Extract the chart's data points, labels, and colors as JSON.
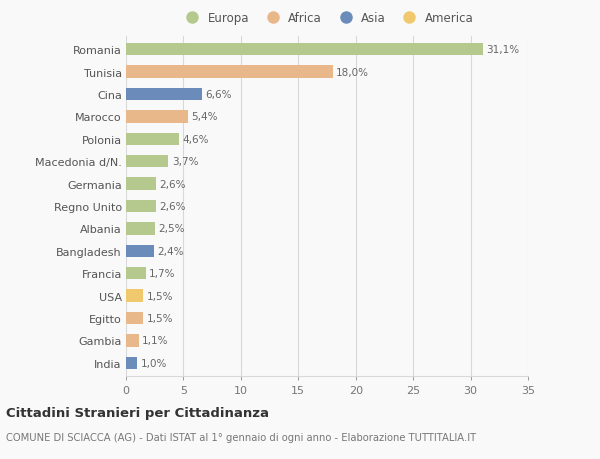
{
  "countries": [
    "Romania",
    "Tunisia",
    "Cina",
    "Marocco",
    "Polonia",
    "Macedonia d/N.",
    "Germania",
    "Regno Unito",
    "Albania",
    "Bangladesh",
    "Francia",
    "USA",
    "Egitto",
    "Gambia",
    "India"
  ],
  "values": [
    31.1,
    18.0,
    6.6,
    5.4,
    4.6,
    3.7,
    2.6,
    2.6,
    2.5,
    2.4,
    1.7,
    1.5,
    1.5,
    1.1,
    1.0
  ],
  "labels": [
    "31,1%",
    "18,0%",
    "6,6%",
    "5,4%",
    "4,6%",
    "3,7%",
    "2,6%",
    "2,6%",
    "2,5%",
    "2,4%",
    "1,7%",
    "1,5%",
    "1,5%",
    "1,1%",
    "1,0%"
  ],
  "continents": [
    "Europa",
    "Africa",
    "Asia",
    "Africa",
    "Europa",
    "Europa",
    "Europa",
    "Europa",
    "Europa",
    "Asia",
    "Europa",
    "America",
    "Africa",
    "Africa",
    "Asia"
  ],
  "colors": {
    "Europa": "#b5c98e",
    "Africa": "#e8b88a",
    "Asia": "#6b8cba",
    "America": "#f0c96e"
  },
  "legend_order": [
    "Europa",
    "Africa",
    "Asia",
    "America"
  ],
  "title": "Cittadini Stranieri per Cittadinanza",
  "subtitle": "COMUNE DI SCIACCA (AG) - Dati ISTAT al 1° gennaio di ogni anno - Elaborazione TUTTITALIA.IT",
  "xlim": [
    0,
    35
  ],
  "xticks": [
    0,
    5,
    10,
    15,
    20,
    25,
    30,
    35
  ],
  "bg_color": "#f9f9f9",
  "grid_color": "#d8d8d8",
  "bar_height": 0.55
}
